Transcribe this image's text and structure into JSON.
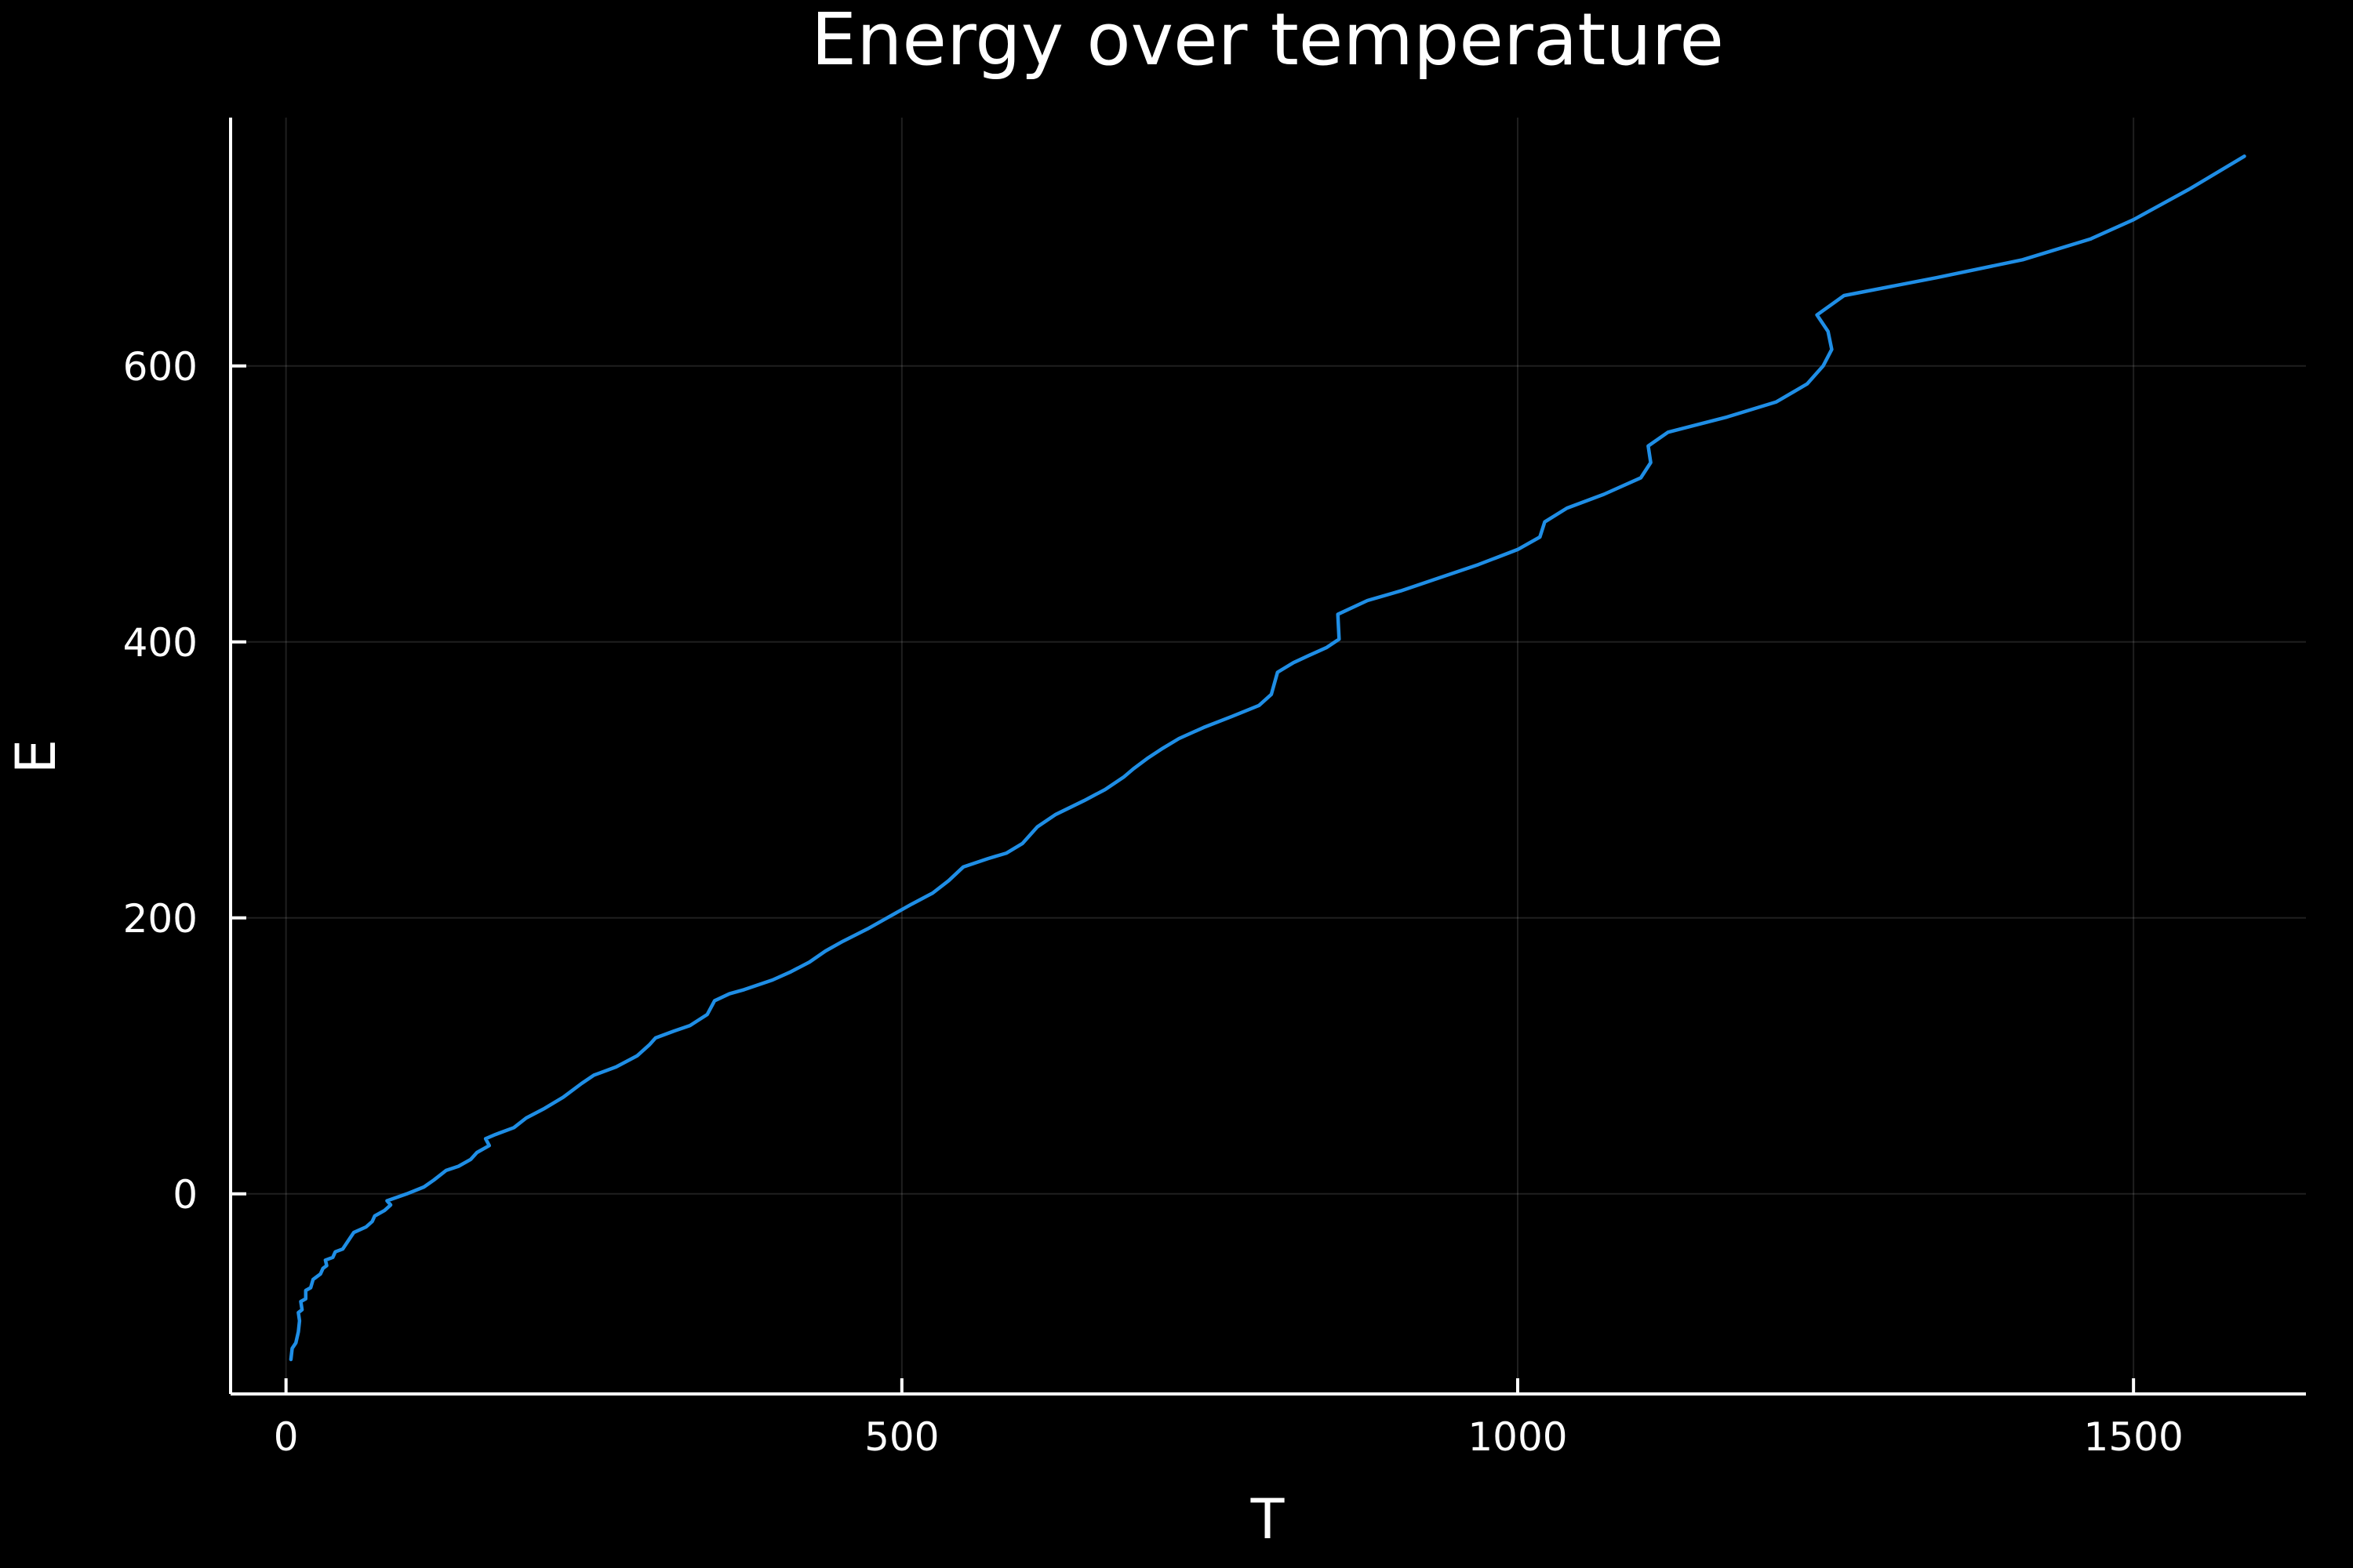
{
  "chart_data": {
    "type": "line",
    "title": "Energy over temperature",
    "xlabel": "T",
    "ylabel": "E",
    "xlim": [
      -45,
      1640
    ],
    "ylim": [
      -145,
      780
    ],
    "xticks": [
      0,
      500,
      1000,
      1500
    ],
    "xtick_labels": [
      "0",
      "500",
      "1000",
      "1500"
    ],
    "yticks": [
      0,
      200,
      400,
      600
    ],
    "ytick_labels": [
      "0",
      "200",
      "400",
      "600"
    ],
    "grid": true,
    "legend": "none",
    "series": [
      {
        "color": "#1f8ee6",
        "points": [
          [
            4,
            -120
          ],
          [
            5,
            -112
          ],
          [
            8,
            -108
          ],
          [
            10,
            -100
          ],
          [
            11,
            -92
          ],
          [
            10,
            -86
          ],
          [
            13,
            -84
          ],
          [
            12,
            -78
          ],
          [
            16,
            -76
          ],
          [
            16,
            -70
          ],
          [
            20,
            -68
          ],
          [
            22,
            -62
          ],
          [
            28,
            -58
          ],
          [
            30,
            -54
          ],
          [
            33,
            -52
          ],
          [
            32,
            -48
          ],
          [
            38,
            -46
          ],
          [
            40,
            -42
          ],
          [
            46,
            -40
          ],
          [
            52,
            -32
          ],
          [
            55,
            -28
          ],
          [
            65,
            -24
          ],
          [
            70,
            -20
          ],
          [
            72,
            -16
          ],
          [
            80,
            -12
          ],
          [
            85,
            -8
          ],
          [
            82,
            -5
          ],
          [
            98,
            0
          ],
          [
            112,
            5
          ],
          [
            120,
            10
          ],
          [
            130,
            17
          ],
          [
            140,
            20
          ],
          [
            150,
            25
          ],
          [
            155,
            30
          ],
          [
            165,
            35
          ],
          [
            162,
            40
          ],
          [
            170,
            43
          ],
          [
            185,
            48
          ],
          [
            195,
            55
          ],
          [
            210,
            62
          ],
          [
            225,
            70
          ],
          [
            240,
            80
          ],
          [
            250,
            86
          ],
          [
            268,
            92
          ],
          [
            285,
            100
          ],
          [
            295,
            108
          ],
          [
            300,
            113
          ],
          [
            315,
            118
          ],
          [
            328,
            122
          ],
          [
            342,
            130
          ],
          [
            348,
            140
          ],
          [
            360,
            145
          ],
          [
            372,
            148
          ],
          [
            395,
            155
          ],
          [
            410,
            161
          ],
          [
            425,
            168
          ],
          [
            438,
            176
          ],
          [
            452,
            183
          ],
          [
            472,
            192
          ],
          [
            488,
            200
          ],
          [
            508,
            210
          ],
          [
            525,
            218
          ],
          [
            538,
            227
          ],
          [
            550,
            237
          ],
          [
            570,
            243
          ],
          [
            585,
            247
          ],
          [
            598,
            254
          ],
          [
            610,
            266
          ],
          [
            625,
            275
          ],
          [
            648,
            285
          ],
          [
            665,
            293
          ],
          [
            680,
            302
          ],
          [
            688,
            308
          ],
          [
            700,
            316
          ],
          [
            712,
            323
          ],
          [
            725,
            330
          ],
          [
            745,
            338
          ],
          [
            768,
            346
          ],
          [
            790,
            354
          ],
          [
            800,
            362
          ],
          [
            805,
            378
          ],
          [
            818,
            385
          ],
          [
            830,
            390
          ],
          [
            845,
            396
          ],
          [
            855,
            402
          ],
          [
            854,
            420
          ],
          [
            878,
            430
          ],
          [
            905,
            437
          ],
          [
            935,
            446
          ],
          [
            968,
            456
          ],
          [
            1000,
            467
          ],
          [
            1018,
            476
          ],
          [
            1022,
            487
          ],
          [
            1040,
            497
          ],
          [
            1070,
            507
          ],
          [
            1100,
            519
          ],
          [
            1108,
            530
          ],
          [
            1106,
            542
          ],
          [
            1122,
            552
          ],
          [
            1170,
            563
          ],
          [
            1210,
            574
          ],
          [
            1235,
            587
          ],
          [
            1248,
            600
          ],
          [
            1255,
            612
          ],
          [
            1252,
            625
          ],
          [
            1243,
            637
          ],
          [
            1265,
            651
          ],
          [
            1340,
            664
          ],
          [
            1410,
            677
          ],
          [
            1465,
            692
          ],
          [
            1500,
            706
          ],
          [
            1545,
            728
          ],
          [
            1590,
            752
          ]
        ]
      }
    ]
  }
}
